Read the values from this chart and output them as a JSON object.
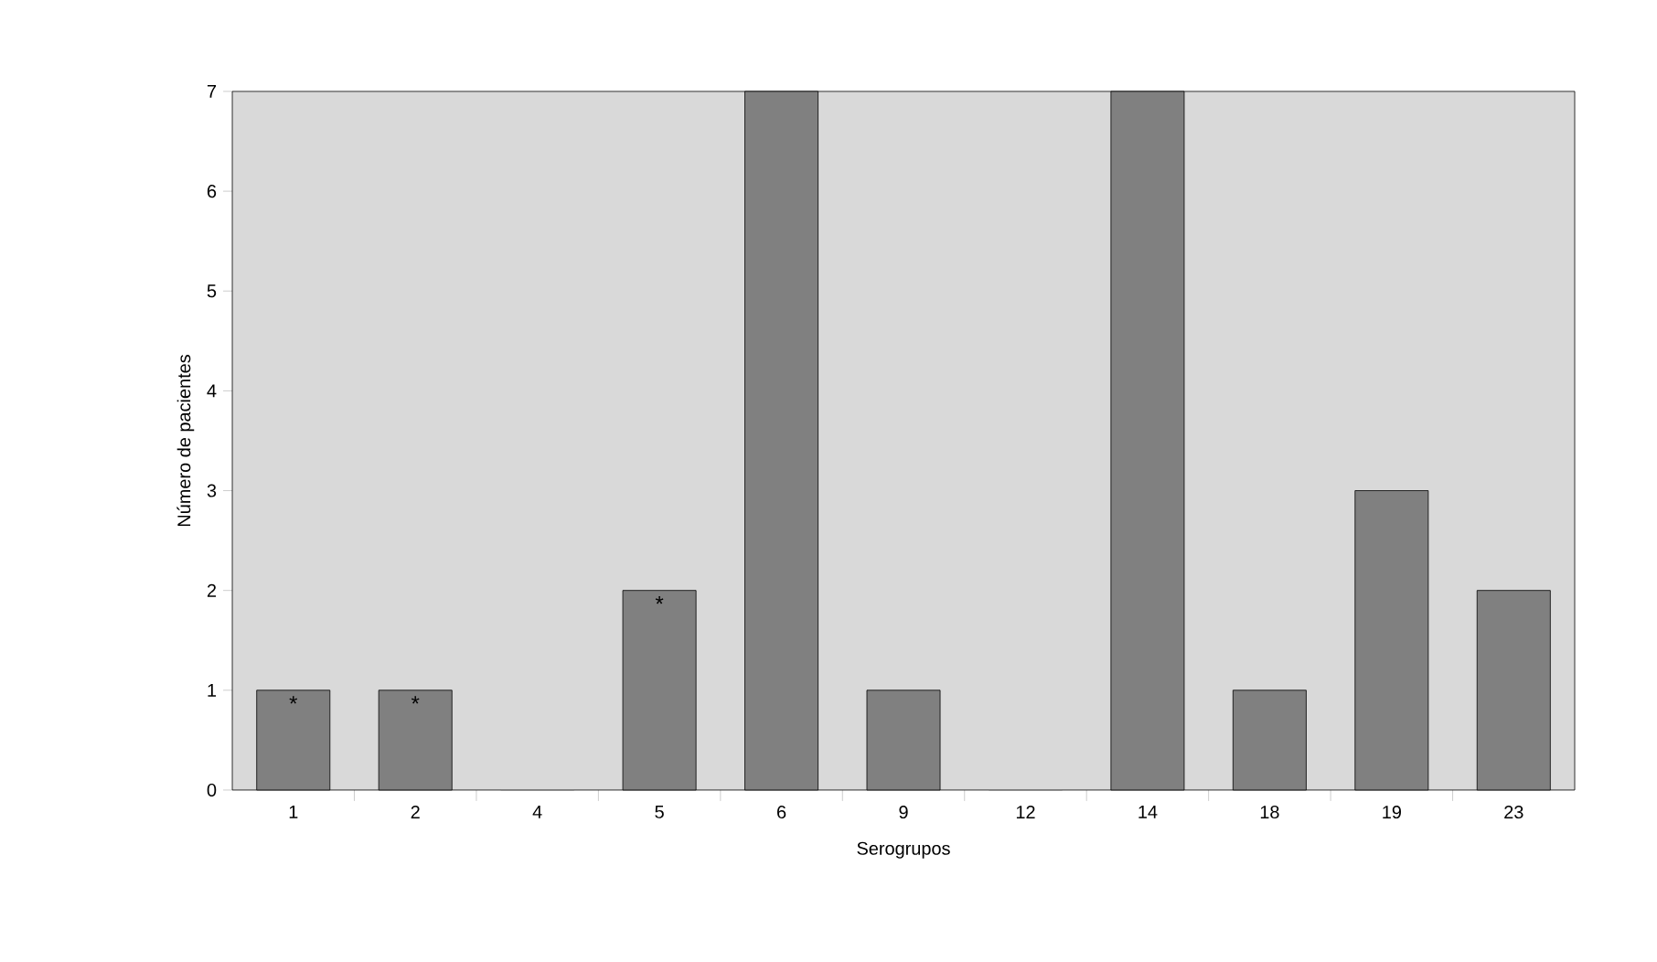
{
  "chart_data": {
    "type": "bar",
    "xlabel": "Serogrupos",
    "ylabel": "Número de pacientes",
    "categories": [
      "1",
      "2",
      "4",
      "5",
      "6",
      "9",
      "12",
      "14",
      "18",
      "19",
      "23"
    ],
    "values": [
      1,
      1,
      0,
      2,
      7,
      1,
      0,
      7,
      1,
      3,
      2
    ],
    "color": "#808080",
    "ylim": [
      0,
      7
    ],
    "yticks": [
      0,
      1,
      2,
      3,
      4,
      5,
      6,
      7
    ],
    "annotations": [
      {
        "text": "*",
        "x": "1",
        "y": 1
      },
      {
        "text": "*",
        "x": "2",
        "y": 1
      },
      {
        "text": "*",
        "x": "5",
        "y": 2
      }
    ]
  }
}
